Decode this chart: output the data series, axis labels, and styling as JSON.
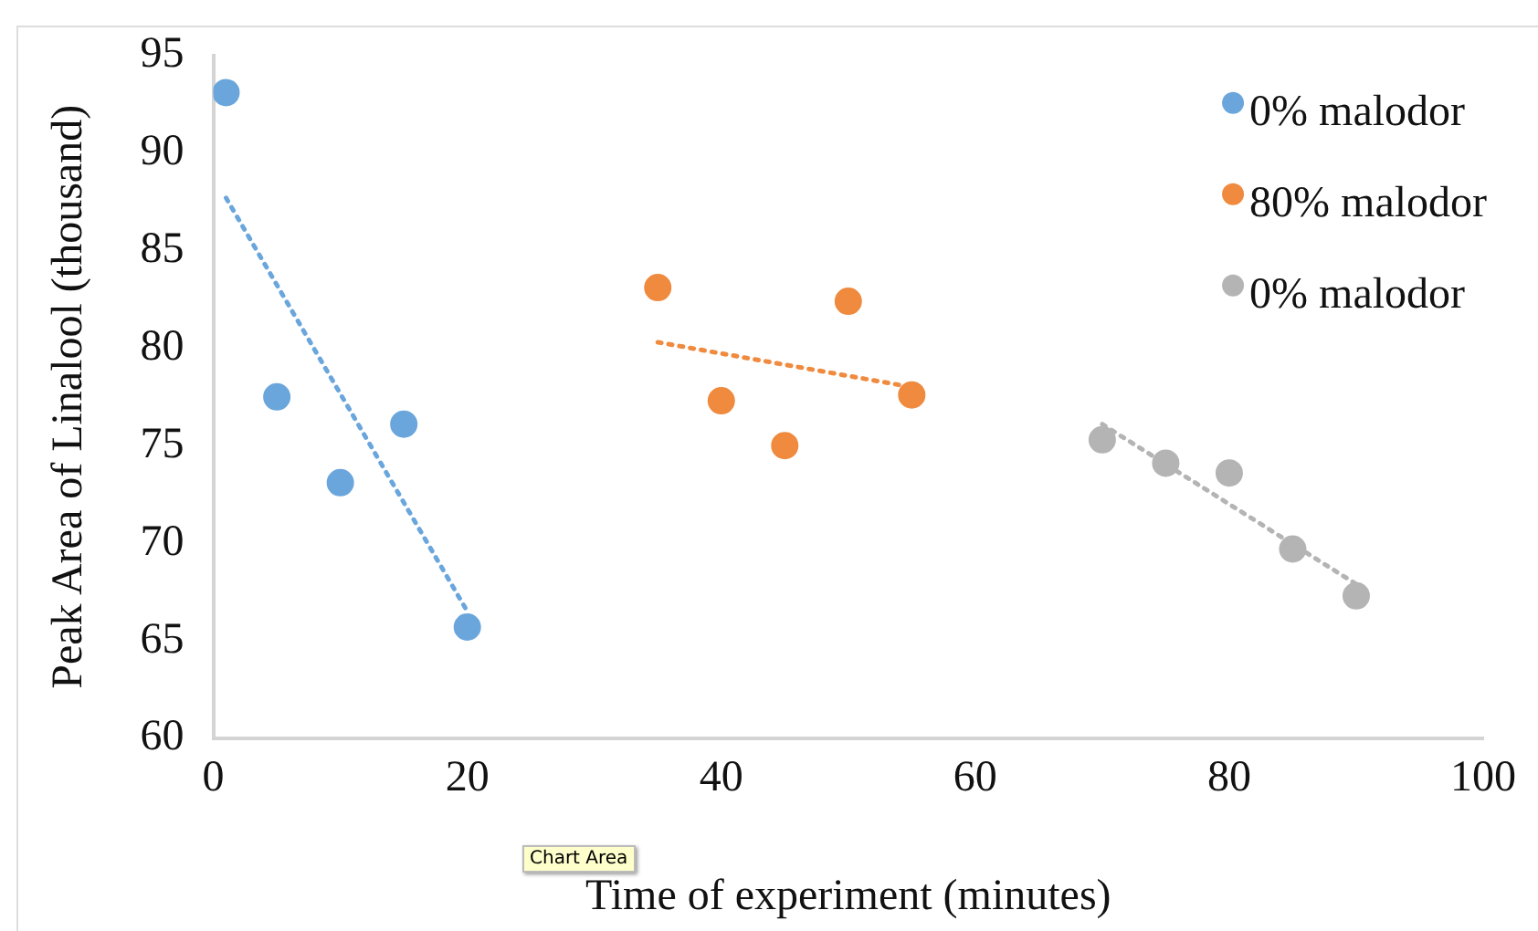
{
  "chart_data": {
    "type": "scatter",
    "xlabel": "Time of experiment (minutes)",
    "ylabel": "Peak Area of Linalool (thousand)",
    "xlim": [
      0,
      100
    ],
    "xticks": [
      0,
      20,
      40,
      60,
      80,
      100
    ],
    "ylim": [
      60,
      95
    ],
    "yticks": [
      60,
      65,
      70,
      75,
      80,
      85,
      90,
      95
    ],
    "grid": false,
    "legend": "top right",
    "marker": "circle",
    "series": [
      {
        "name": "0% malodor",
        "color": "#6aa6dc",
        "x": [
          1,
          5,
          10,
          15,
          20
        ],
        "values": [
          93.1,
          77.5,
          73.1,
          76.1,
          65.7
        ]
      },
      {
        "name": "80% malodor",
        "color": "#ef8a3e",
        "x": [
          35,
          40,
          45,
          50,
          55
        ],
        "values": [
          83.1,
          77.3,
          75.0,
          82.4,
          77.6
        ]
      },
      {
        "name": "0% malodor",
        "color": "#b4b4b4",
        "x": [
          70,
          75,
          80,
          85,
          90
        ],
        "values": [
          75.3,
          74.1,
          73.6,
          69.7,
          67.3
        ]
      },
      {
        "type": "line",
        "color": "#6aa6dc",
        "line_style": "dotted",
        "marker": "none",
        "x": [
          1,
          20
        ],
        "values": [
          87.7,
          66.5
        ]
      },
      {
        "type": "line",
        "color": "#ef8a3e",
        "line_style": "dotted",
        "marker": "none",
        "x": [
          35,
          55
        ],
        "values": [
          80.3,
          78.0
        ]
      },
      {
        "type": "line",
        "color": "#b4b4b4",
        "line_style": "dotted",
        "marker": "none",
        "x": [
          70,
          90
        ],
        "values": [
          76.1,
          67.9
        ]
      }
    ],
    "annotations": [
      "Chart Area"
    ]
  }
}
